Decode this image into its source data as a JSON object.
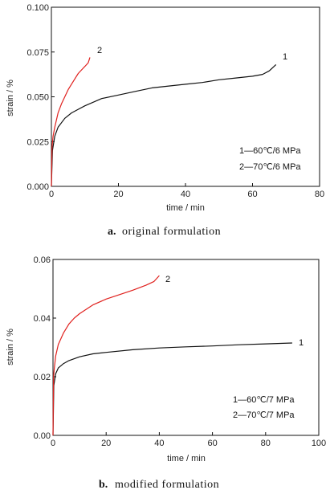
{
  "chart_data": [
    {
      "type": "line",
      "caption_letter": "a.",
      "caption_text": "original formulation",
      "xlabel": "time / min",
      "ylabel": "strain / %",
      "xlim": [
        0,
        80
      ],
      "ylim": [
        0,
        0.1
      ],
      "xticks": [
        "0",
        "20",
        "40",
        "60",
        "80"
      ],
      "yticks": [
        "0.000",
        "0.025",
        "0.050",
        "0.075",
        "0.100"
      ],
      "legend": [
        "1—60℃/6 MPa",
        "2—70℃/6 MPa"
      ],
      "legend_position": "bottom-right",
      "series": [
        {
          "name": "1",
          "color": "#111111",
          "x": [
            0,
            0.3,
            1,
            2,
            4,
            6,
            8,
            10,
            15,
            20,
            25,
            30,
            35,
            40,
            45,
            50,
            55,
            60,
            63,
            65,
            67
          ],
          "y": [
            0.0,
            0.02,
            0.028,
            0.033,
            0.038,
            0.041,
            0.043,
            0.045,
            0.049,
            0.051,
            0.053,
            0.055,
            0.056,
            0.057,
            0.058,
            0.0595,
            0.0605,
            0.0615,
            0.0625,
            0.0645,
            0.068
          ]
        },
        {
          "name": "2",
          "color": "#e0211e",
          "x": [
            0,
            0.2,
            0.5,
            1,
            2,
            3,
            4,
            5,
            6,
            7,
            8,
            9,
            10,
            11,
            11.5
          ],
          "y": [
            0.0,
            0.022,
            0.028,
            0.033,
            0.041,
            0.046,
            0.05,
            0.054,
            0.057,
            0.06,
            0.063,
            0.065,
            0.067,
            0.069,
            0.072
          ]
        }
      ]
    },
    {
      "type": "line",
      "caption_letter": "b.",
      "caption_text": "modified formulation",
      "xlabel": "time / min",
      "ylabel": "strain / %",
      "xlim": [
        0,
        100
      ],
      "ylim": [
        0,
        0.06
      ],
      "xticks": [
        "0",
        "20",
        "40",
        "60",
        "80",
        "100"
      ],
      "yticks": [
        "0.00",
        "0.02",
        "0.04",
        "0.06"
      ],
      "legend": [
        "1—60℃/7 MPa",
        "2—70℃/7 MPa"
      ],
      "legend_position": "bottom-right",
      "series": [
        {
          "name": "1",
          "color": "#111111",
          "x": [
            0,
            0.3,
            1,
            2,
            4,
            6,
            10,
            15,
            20,
            30,
            40,
            50,
            60,
            70,
            80,
            90
          ],
          "y": [
            0.0,
            0.017,
            0.021,
            0.023,
            0.0245,
            0.0255,
            0.0268,
            0.0278,
            0.0283,
            0.0292,
            0.0298,
            0.0302,
            0.0305,
            0.0309,
            0.0312,
            0.0315
          ]
        },
        {
          "name": "2",
          "color": "#e0211e",
          "x": [
            0,
            0.2,
            0.5,
            1,
            2,
            4,
            6,
            8,
            10,
            15,
            20,
            25,
            30,
            35,
            38,
            40
          ],
          "y": [
            0.0,
            0.02,
            0.023,
            0.027,
            0.031,
            0.035,
            0.038,
            0.04,
            0.0415,
            0.0445,
            0.0465,
            0.048,
            0.0495,
            0.0512,
            0.0525,
            0.0545
          ]
        }
      ]
    }
  ]
}
